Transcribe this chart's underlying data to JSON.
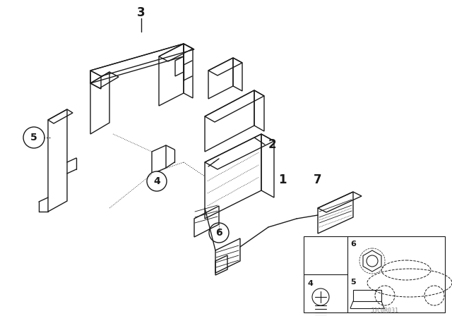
{
  "background_color": "#ffffff",
  "line_color": "#1a1a1a",
  "watermark": "JJC0R031",
  "label_fontsize": 10,
  "circle_label_fontsize": 9,
  "lw_main": 1.0,
  "lw_thin": 0.6,
  "lw_dotted": 0.7
}
